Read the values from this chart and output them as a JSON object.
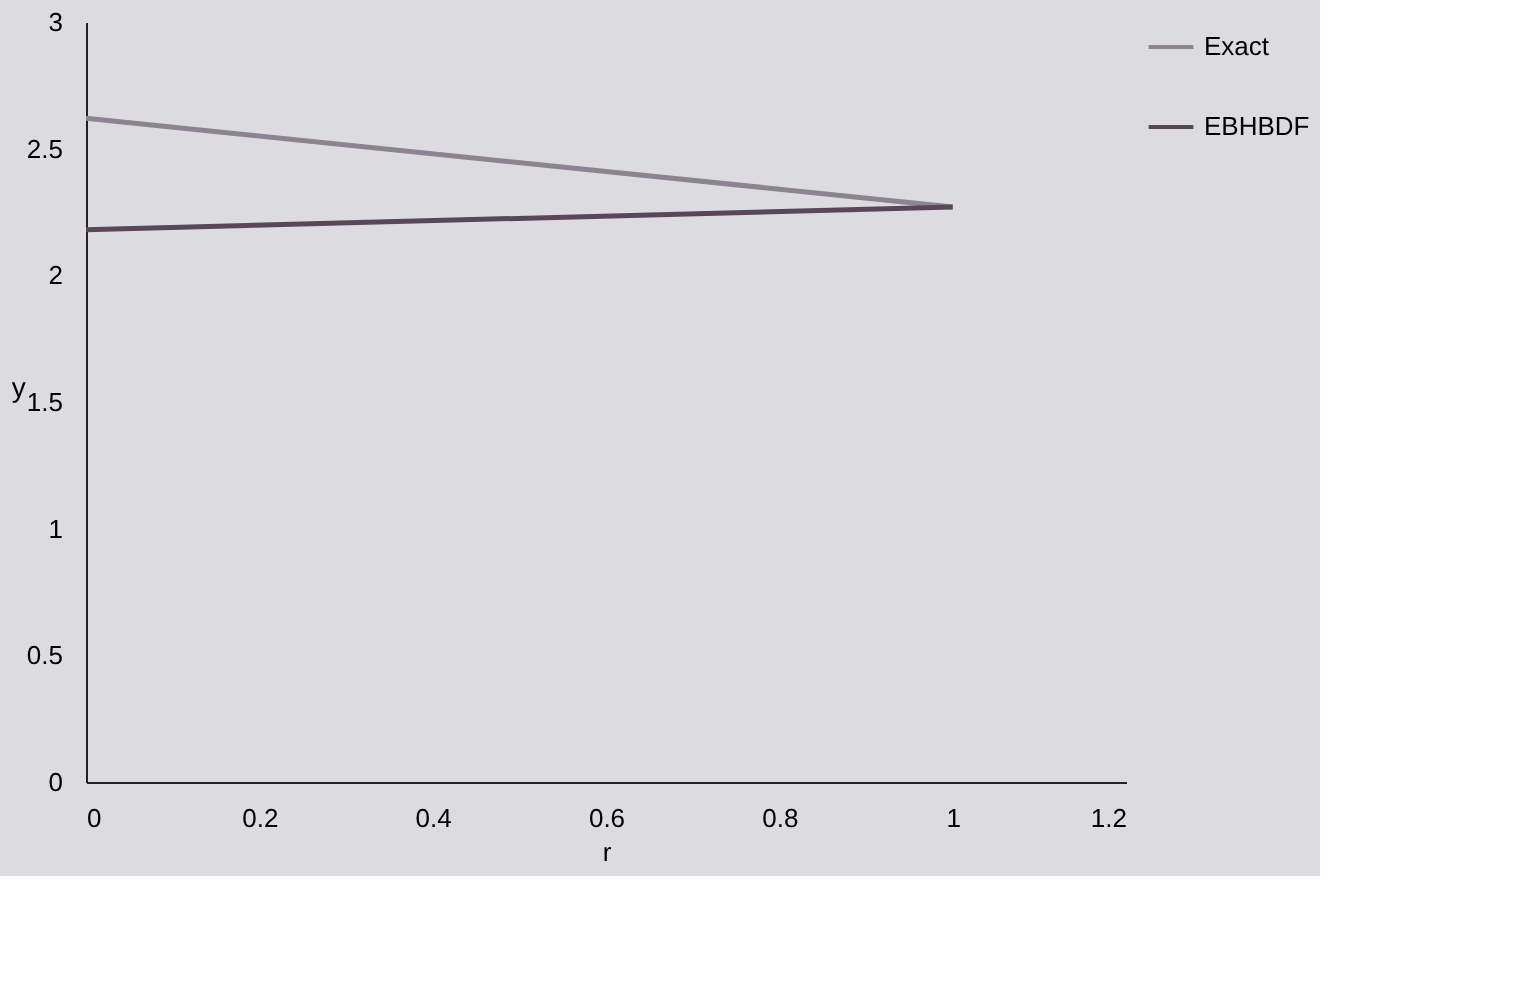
{
  "chart_data": {
    "type": "line",
    "xlabel": "r",
    "ylabel": "y",
    "x": [
      0,
      1
    ],
    "series": [
      {
        "name": "Exact",
        "color": "#8c8490",
        "values": [
          2.62,
          2.27
        ]
      },
      {
        "name": "EBHBDF",
        "color": "#5a4658",
        "values": [
          2.18,
          2.27
        ]
      }
    ],
    "xlim": [
      0,
      1.2
    ],
    "xticks": [
      0,
      0.2,
      0.4,
      0.6,
      0.8,
      1,
      1.2
    ],
    "ylim": [
      0,
      3
    ],
    "yticks": [
      0,
      0.5,
      1,
      1.5,
      2,
      2.5,
      3
    ],
    "legend": "right",
    "marker": "none",
    "line_style": "solid"
  }
}
